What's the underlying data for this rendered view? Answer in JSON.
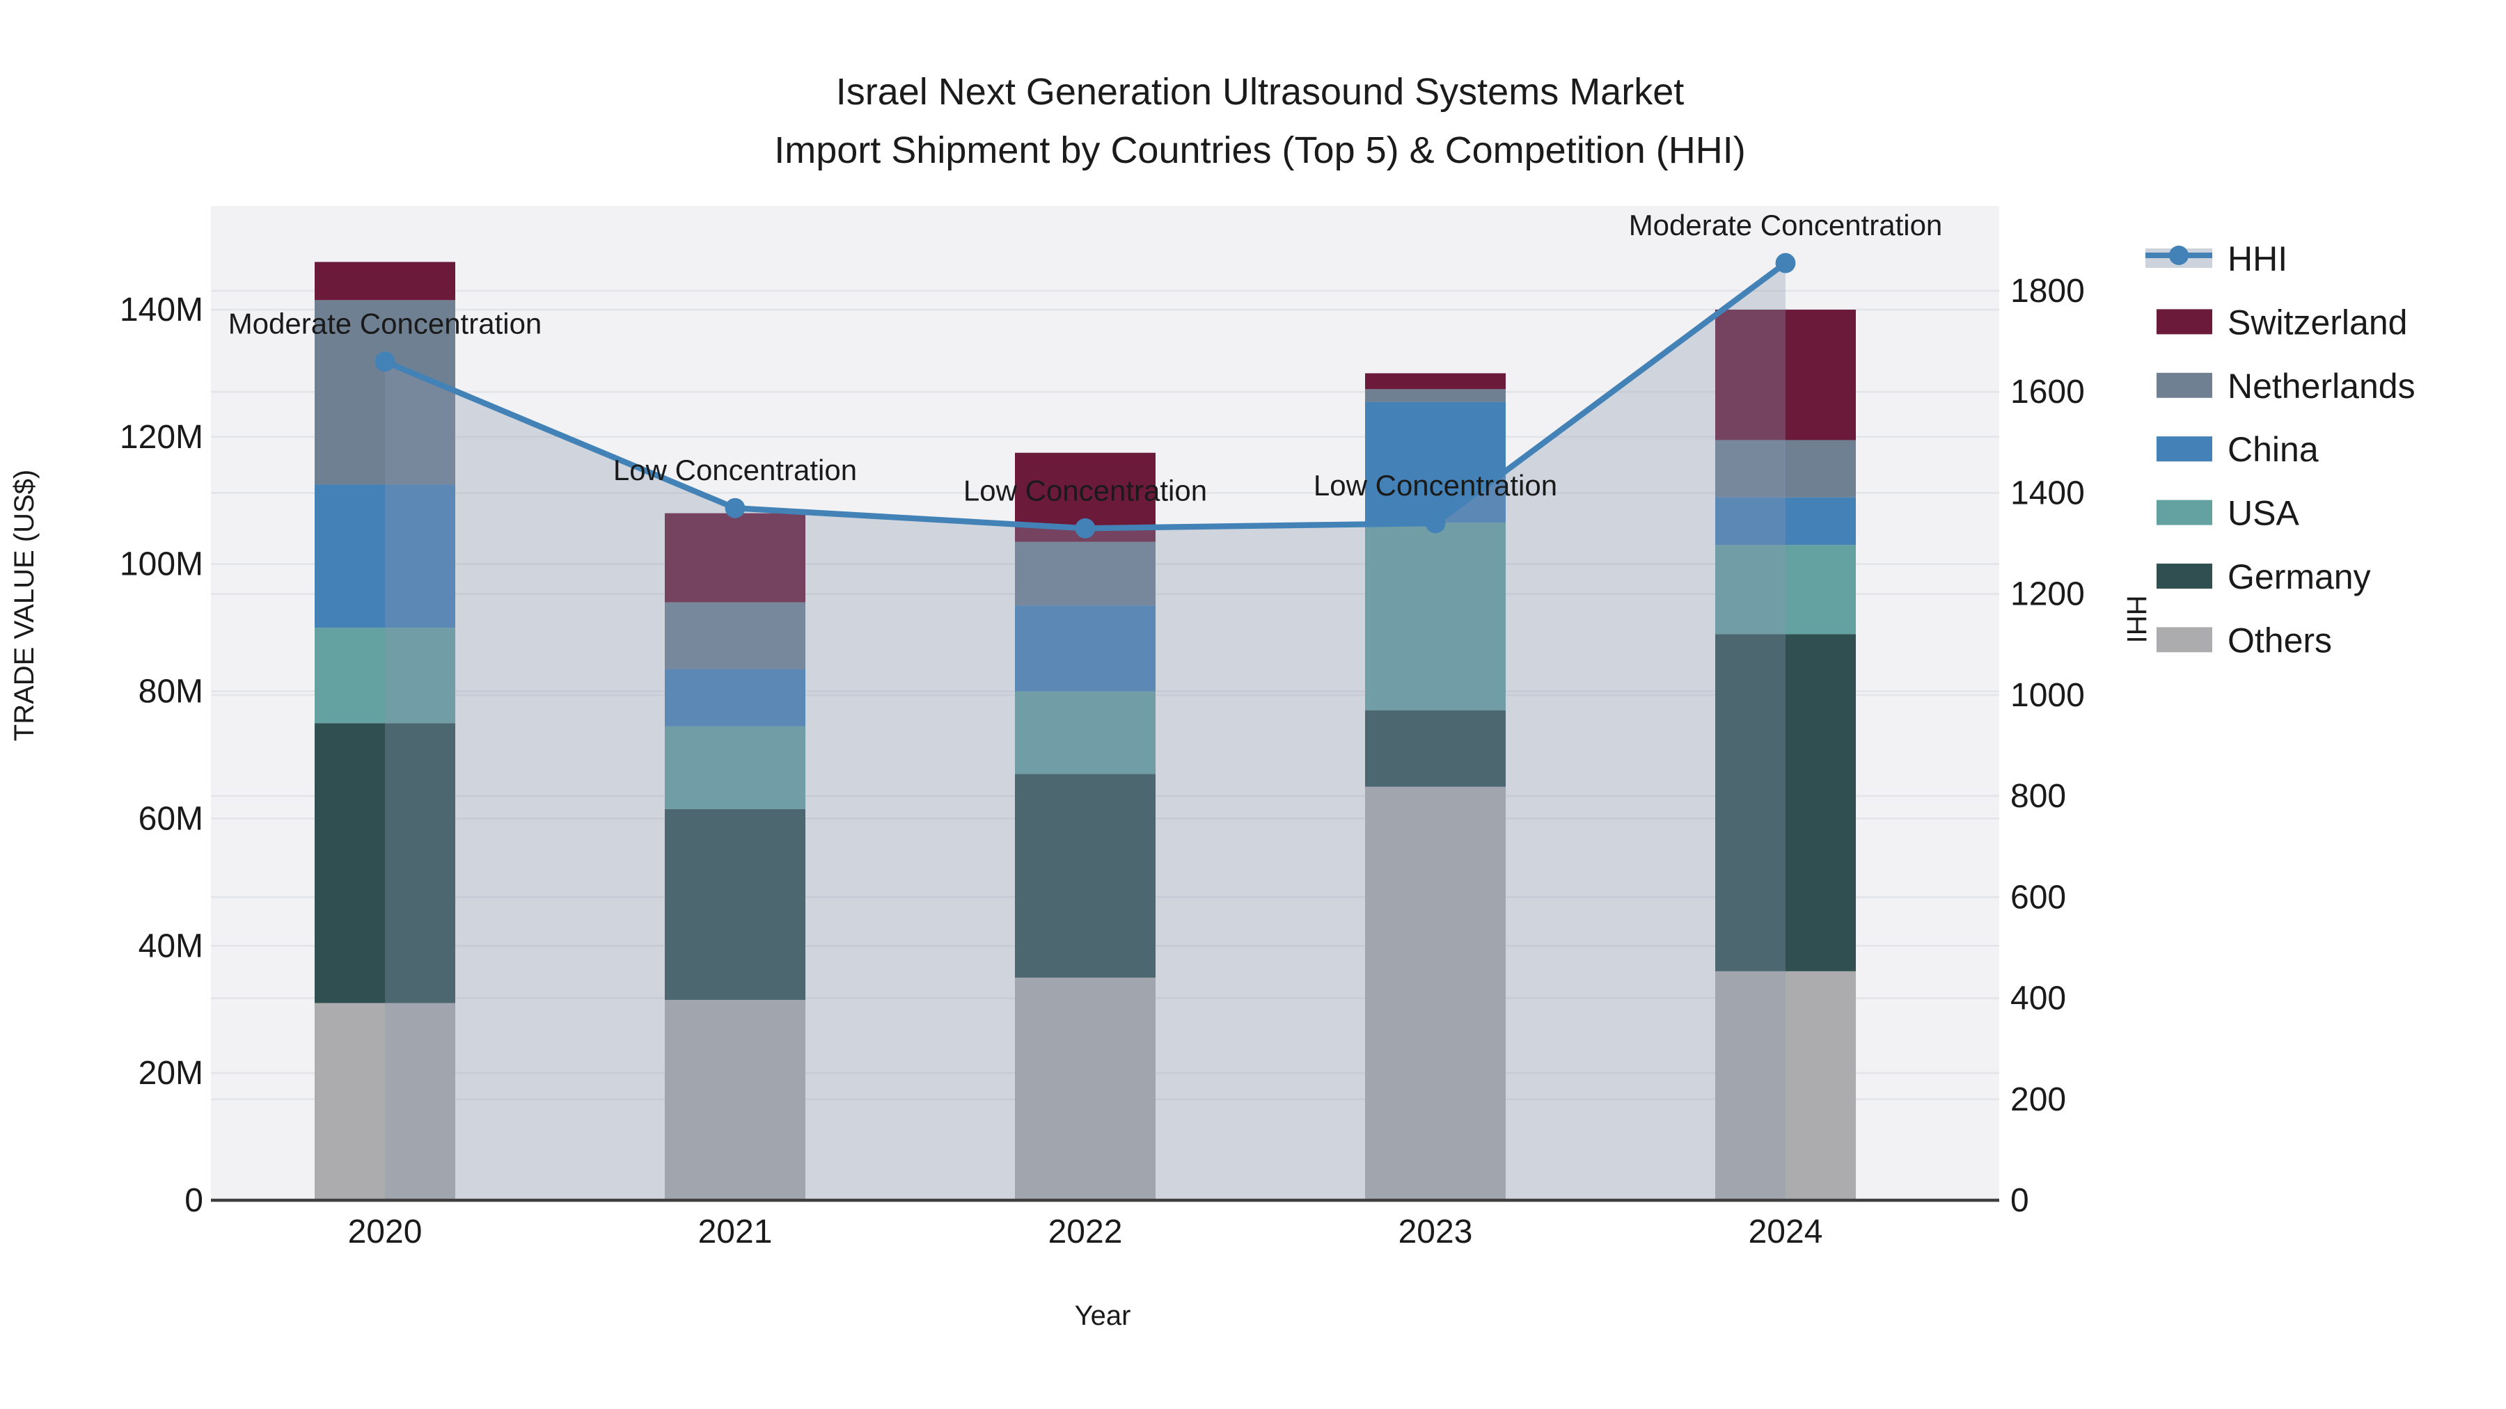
{
  "title": {
    "line1": "Israel Next Generation Ultrasound Systems Market",
    "line2": "Import Shipment by Countries (Top 5) & Competition (HHI)"
  },
  "axes": {
    "x": {
      "label": "Year",
      "ticks": [
        "2020",
        "2021",
        "2022",
        "2023",
        "2024"
      ]
    },
    "y_left": {
      "label": "TRADE VALUE (US$)",
      "ticks": [
        "0",
        "20M",
        "40M",
        "60M",
        "80M",
        "100M",
        "120M",
        "140M"
      ],
      "tick_values": [
        0,
        20,
        40,
        60,
        80,
        100,
        120,
        140
      ]
    },
    "y_right": {
      "label": "HHI",
      "ticks": [
        "0",
        "200",
        "400",
        "600",
        "800",
        "1000",
        "1200",
        "1400",
        "1600",
        "1800"
      ],
      "tick_values": [
        0,
        200,
        400,
        600,
        800,
        1000,
        1200,
        1400,
        1600,
        1800
      ]
    }
  },
  "legend": {
    "items": [
      {
        "label": "HHI",
        "type": "line"
      },
      {
        "label": "Switzerland",
        "type": "bar"
      },
      {
        "label": "Netherlands",
        "type": "bar"
      },
      {
        "label": "China",
        "type": "bar"
      },
      {
        "label": "USA",
        "type": "bar"
      },
      {
        "label": "Germany",
        "type": "bar"
      },
      {
        "label": "Others",
        "type": "bar"
      }
    ]
  },
  "annotations": [
    {
      "year": "2020",
      "text": "Moderate Concentration"
    },
    {
      "year": "2021",
      "text": "Low Concentration"
    },
    {
      "year": "2022",
      "text": "Low Concentration"
    },
    {
      "year": "2023",
      "text": "Low Concentration"
    },
    {
      "year": "2024",
      "text": "Moderate Concentration"
    }
  ],
  "chart_data": {
    "type": "bar+line",
    "bar_units": "US$ millions (stacked import trade value)",
    "categories": [
      "2020",
      "2021",
      "2022",
      "2023",
      "2024"
    ],
    "series": [
      {
        "name": "Others",
        "color": "#acacae",
        "values": [
          31,
          31.5,
          35,
          65,
          36
        ]
      },
      {
        "name": "Germany",
        "color": "#2f4f51",
        "values": [
          44,
          30,
          32,
          12,
          53
        ]
      },
      {
        "name": "USA",
        "color": "#64a1a1",
        "values": [
          15,
          13,
          13,
          29.5,
          14
        ]
      },
      {
        "name": "China",
        "color": "#4381b6",
        "values": [
          22.5,
          9,
          13.5,
          19,
          7.5
        ]
      },
      {
        "name": "Netherlands",
        "color": "#6f8093",
        "values": [
          29,
          10.5,
          10,
          2,
          9
        ]
      },
      {
        "name": "Switzerland",
        "color": "#6b1a39",
        "values": [
          6,
          14,
          14,
          2.5,
          20.5
        ]
      }
    ],
    "bar_totals": [
      147.5,
      108,
      117.5,
      130,
      140
    ],
    "line_series": {
      "name": "HHI",
      "color": "#4282b6",
      "values": [
        1660,
        1370,
        1330,
        1340,
        1855
      ]
    },
    "ylim_left": [
      0,
      156.3
    ],
    "ylim_right": [
      0,
      1968
    ],
    "xlabel": "Year",
    "ylabel_left": "TRADE VALUE (US$)",
    "ylabel_right": "HHI",
    "grid": true,
    "legend_position": "right"
  },
  "colors": {
    "background": "#ffffff",
    "plot_bg": "#f2f2f4",
    "grid": "#e3e4e7",
    "axis_line": "#3f3f3f",
    "text": "#1a1a1a",
    "hhi_line": "#4282b6",
    "area_fill": "rgba(140,152,176,0.33)",
    "legend_hhi_band": "#ccd3dd"
  }
}
